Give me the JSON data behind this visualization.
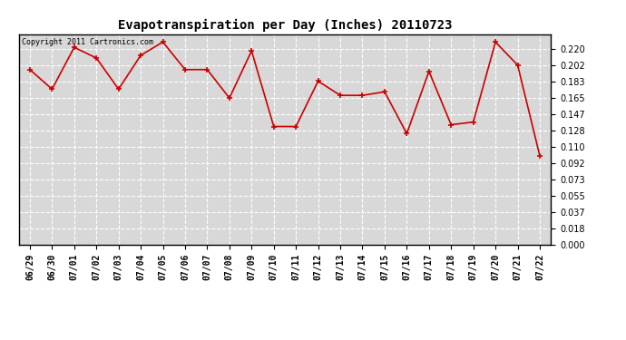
{
  "title": "Evapotranspiration per Day (Inches) 20110723",
  "copyright_text": "Copyright 2011 Cartronics.com",
  "dates": [
    "06/29",
    "06/30",
    "07/01",
    "07/02",
    "07/03",
    "07/04",
    "07/05",
    "07/06",
    "07/07",
    "07/08",
    "07/09",
    "07/10",
    "07/11",
    "07/12",
    "07/13",
    "07/14",
    "07/15",
    "07/16",
    "07/17",
    "07/18",
    "07/19",
    "07/20",
    "07/21",
    "07/22"
  ],
  "values": [
    0.197,
    0.175,
    0.222,
    0.21,
    0.175,
    0.213,
    0.228,
    0.197,
    0.197,
    0.165,
    0.218,
    0.133,
    0.133,
    0.184,
    0.168,
    0.168,
    0.172,
    0.125,
    0.195,
    0.135,
    0.138,
    0.228,
    0.202,
    0.1
  ],
  "line_color": "#cc0000",
  "marker_color": "#cc0000",
  "background_color": "#ffffff",
  "plot_bg_color": "#d8d8d8",
  "grid_color": "#ffffff",
  "ylim": [
    0.0,
    0.237
  ],
  "yticks": [
    0.0,
    0.018,
    0.037,
    0.055,
    0.073,
    0.092,
    0.11,
    0.128,
    0.147,
    0.165,
    0.183,
    0.202,
    0.22
  ],
  "title_fontsize": 10,
  "copyright_fontsize": 6,
  "tick_fontsize": 7,
  "fig_width": 6.9,
  "fig_height": 3.75
}
